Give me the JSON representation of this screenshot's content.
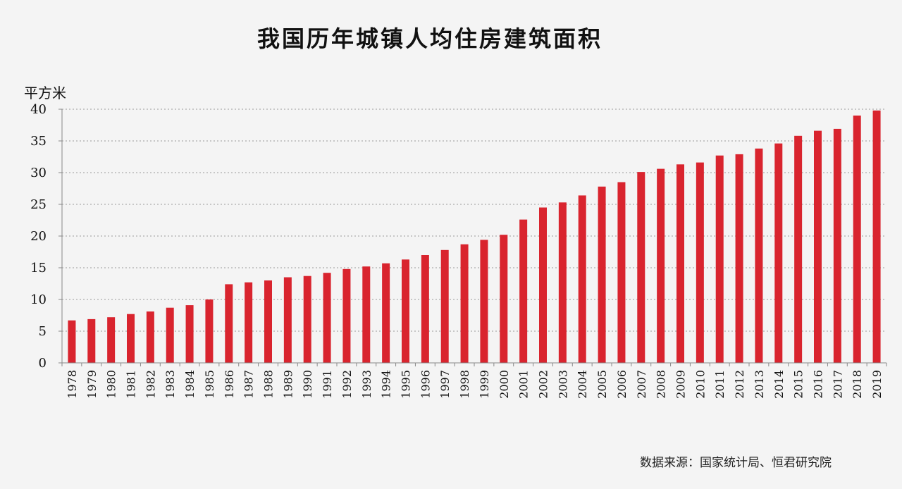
{
  "chart_data": {
    "type": "bar",
    "title": "我国历年城镇人均住房建筑面积",
    "ylabel": "平方米",
    "xlabel": "",
    "ylim": [
      0,
      40
    ],
    "yticks": [
      0,
      5,
      10,
      15,
      20,
      25,
      30,
      35,
      40
    ],
    "grid": true,
    "bar_color": "#d9242e",
    "categories": [
      "1978",
      "1979",
      "1980",
      "1981",
      "1982",
      "1983",
      "1984",
      "1985",
      "1986",
      "1987",
      "1988",
      "1989",
      "1990",
      "1991",
      "1992",
      "1993",
      "1994",
      "1995",
      "1996",
      "1997",
      "1998",
      "1999",
      "2000",
      "2001",
      "2002",
      "2003",
      "2004",
      "2005",
      "2006",
      "2007",
      "2008",
      "2009",
      "2010",
      "2011",
      "2012",
      "2013",
      "2014",
      "2015",
      "2016",
      "2017",
      "2018",
      "2019"
    ],
    "values": [
      6.7,
      6.9,
      7.2,
      7.7,
      8.1,
      8.7,
      9.1,
      10.0,
      12.4,
      12.7,
      13.0,
      13.5,
      13.7,
      14.2,
      14.8,
      15.2,
      15.7,
      16.3,
      17.0,
      17.8,
      18.7,
      19.4,
      20.2,
      22.6,
      24.5,
      25.3,
      26.4,
      27.8,
      28.5,
      30.1,
      30.6,
      31.3,
      31.6,
      32.7,
      32.9,
      33.8,
      34.6,
      35.8,
      36.6,
      36.9,
      39.0,
      39.8
    ],
    "source": "数据来源：国家统计局、恒君研究院"
  }
}
